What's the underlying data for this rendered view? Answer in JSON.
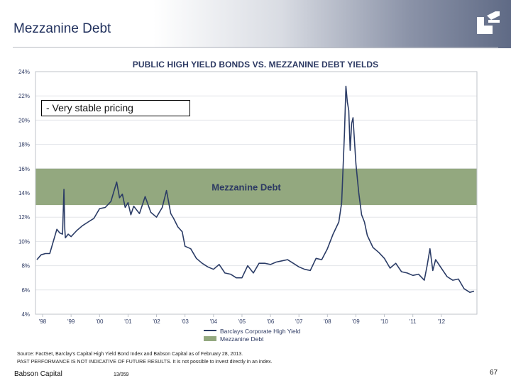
{
  "slide": {
    "title": "Mezzanine Debt",
    "callout": "- Very stable pricing",
    "source_line1": "Source: FactSet, Barclay's Capital High Yield Bond Index and Babson Capital as of February 28, 2013.",
    "source_line2": "PAST PERFORMANCE IS NOT INDICATIVE OF FUTURE RESULTS. It is not possible to invest directly in an index.",
    "footer_left": "Babson Capital",
    "footer_mid": "13/059",
    "page_number": "67"
  },
  "chart_data": {
    "type": "line",
    "title": "PUBLIC HIGH YIELD BONDS VS. MEZZANINE DEBT YIELDS",
    "xlabel": "",
    "ylabel": "",
    "xlim": [
      1997.75,
      2013.25
    ],
    "ylim": [
      4,
      24
    ],
    "y_ticks": [
      "4%",
      "6%",
      "8%",
      "10%",
      "12%",
      "14%",
      "16%",
      "18%",
      "20%",
      "22%",
      "24%"
    ],
    "x_ticks": [
      "'98",
      "'99",
      "'00",
      "'01",
      "'02",
      "'03",
      "'04",
      "'05",
      "'06",
      "'07",
      "'08",
      "'09",
      "'10",
      "'11",
      "'12"
    ],
    "grid": true,
    "legend_position": "bottom",
    "band": {
      "name": "Mezzanine Debt",
      "y_min": 13,
      "y_max": 16,
      "color": "#93a87f"
    },
    "series": [
      {
        "name": "Barclays Corporate High Yield",
        "color": "#2b3c66",
        "x": [
          1997.8,
          1997.95,
          1998.1,
          1998.25,
          1998.4,
          1998.5,
          1998.6,
          1998.7,
          1998.75,
          1998.78,
          1998.8,
          1998.9,
          1999.0,
          1999.2,
          1999.4,
          1999.6,
          1999.8,
          2000.0,
          2000.2,
          2000.4,
          2000.6,
          2000.7,
          2000.8,
          2000.9,
          2001.0,
          2001.1,
          2001.2,
          2001.4,
          2001.6,
          2001.8,
          2002.0,
          2002.2,
          2002.35,
          2002.5,
          2002.6,
          2002.75,
          2002.9,
          2003.0,
          2003.2,
          2003.4,
          2003.6,
          2003.8,
          2004.0,
          2004.2,
          2004.4,
          2004.6,
          2004.8,
          2005.0,
          2005.2,
          2005.4,
          2005.6,
          2005.8,
          2006.0,
          2006.2,
          2006.4,
          2006.6,
          2006.8,
          2007.0,
          2007.2,
          2007.4,
          2007.6,
          2007.8,
          2008.0,
          2008.2,
          2008.4,
          2008.5,
          2008.6,
          2008.65,
          2008.7,
          2008.75,
          2008.8,
          2008.85,
          2008.9,
          2009.0,
          2009.1,
          2009.2,
          2009.3,
          2009.4,
          2009.6,
          2009.8,
          2010.0,
          2010.2,
          2010.4,
          2010.6,
          2010.8,
          2011.0,
          2011.2,
          2011.4,
          2011.5,
          2011.6,
          2011.7,
          2011.8,
          2012.0,
          2012.2,
          2012.4,
          2012.6,
          2012.8,
          2013.0,
          2013.15
        ],
        "values": [
          8.5,
          8.9,
          9.0,
          9.0,
          10.2,
          11.0,
          10.7,
          10.6,
          14.3,
          11.0,
          10.3,
          10.6,
          10.4,
          10.9,
          11.3,
          11.6,
          11.9,
          12.7,
          12.8,
          13.3,
          14.9,
          13.6,
          13.9,
          12.8,
          13.2,
          12.2,
          12.9,
          12.3,
          13.7,
          12.4,
          12.0,
          12.8,
          14.2,
          12.3,
          11.9,
          11.2,
          10.8,
          9.6,
          9.4,
          8.6,
          8.2,
          7.9,
          7.7,
          8.1,
          7.4,
          7.3,
          7.0,
          7.0,
          8.0,
          7.4,
          8.2,
          8.2,
          8.1,
          8.3,
          8.4,
          8.5,
          8.2,
          7.9,
          7.7,
          7.6,
          8.6,
          8.5,
          9.4,
          10.6,
          11.6,
          13.2,
          19.0,
          22.8,
          21.5,
          20.8,
          17.5,
          19.7,
          20.2,
          16.4,
          14.0,
          12.2,
          11.6,
          10.5,
          9.5,
          9.1,
          8.6,
          7.8,
          8.2,
          7.5,
          7.4,
          7.2,
          7.3,
          6.8,
          8.0,
          9.4,
          7.6,
          8.5,
          7.8,
          7.1,
          6.8,
          6.9,
          6.1,
          5.8,
          5.9
        ]
      }
    ]
  }
}
